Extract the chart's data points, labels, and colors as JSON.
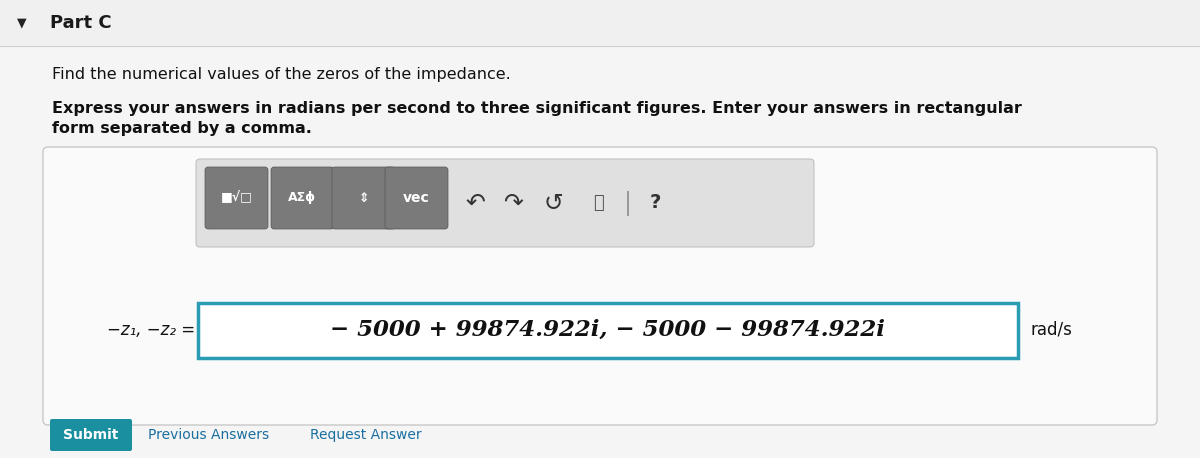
{
  "bg_color": "#f5f5f5",
  "inner_bg": "#ffffff",
  "part_label": "Part C",
  "arrow_down": "▼",
  "text1": "Find the numerical values of the zeros of the impedance.",
  "text2_bold_line1": "Express your answers in radians per second to three significant figures. Enter your answers in rectangular",
  "text2_bold_line2": "form separated by a comma.",
  "label_left": "−z₁, −z₂ =",
  "answer": "− 5000 + 99874.922i, − 5000 − 99874.922i",
  "unit": "rad/s",
  "toolbar_bg": "#e0e0e0",
  "toolbar_btn_bg": "#7a7a7a",
  "toolbar_btn_texts": [
    "■√□",
    "AΣϕ",
    "⇕",
    "vec"
  ],
  "answer_box_border": "#2a9db5",
  "outer_box_border": "#c8c8c8",
  "submit_btn_color": "#1a8fa0",
  "submit_text": "Submit",
  "prev_text": "Previous Answers",
  "req_text": "Request Answer",
  "header_bg": "#f0f0f0"
}
